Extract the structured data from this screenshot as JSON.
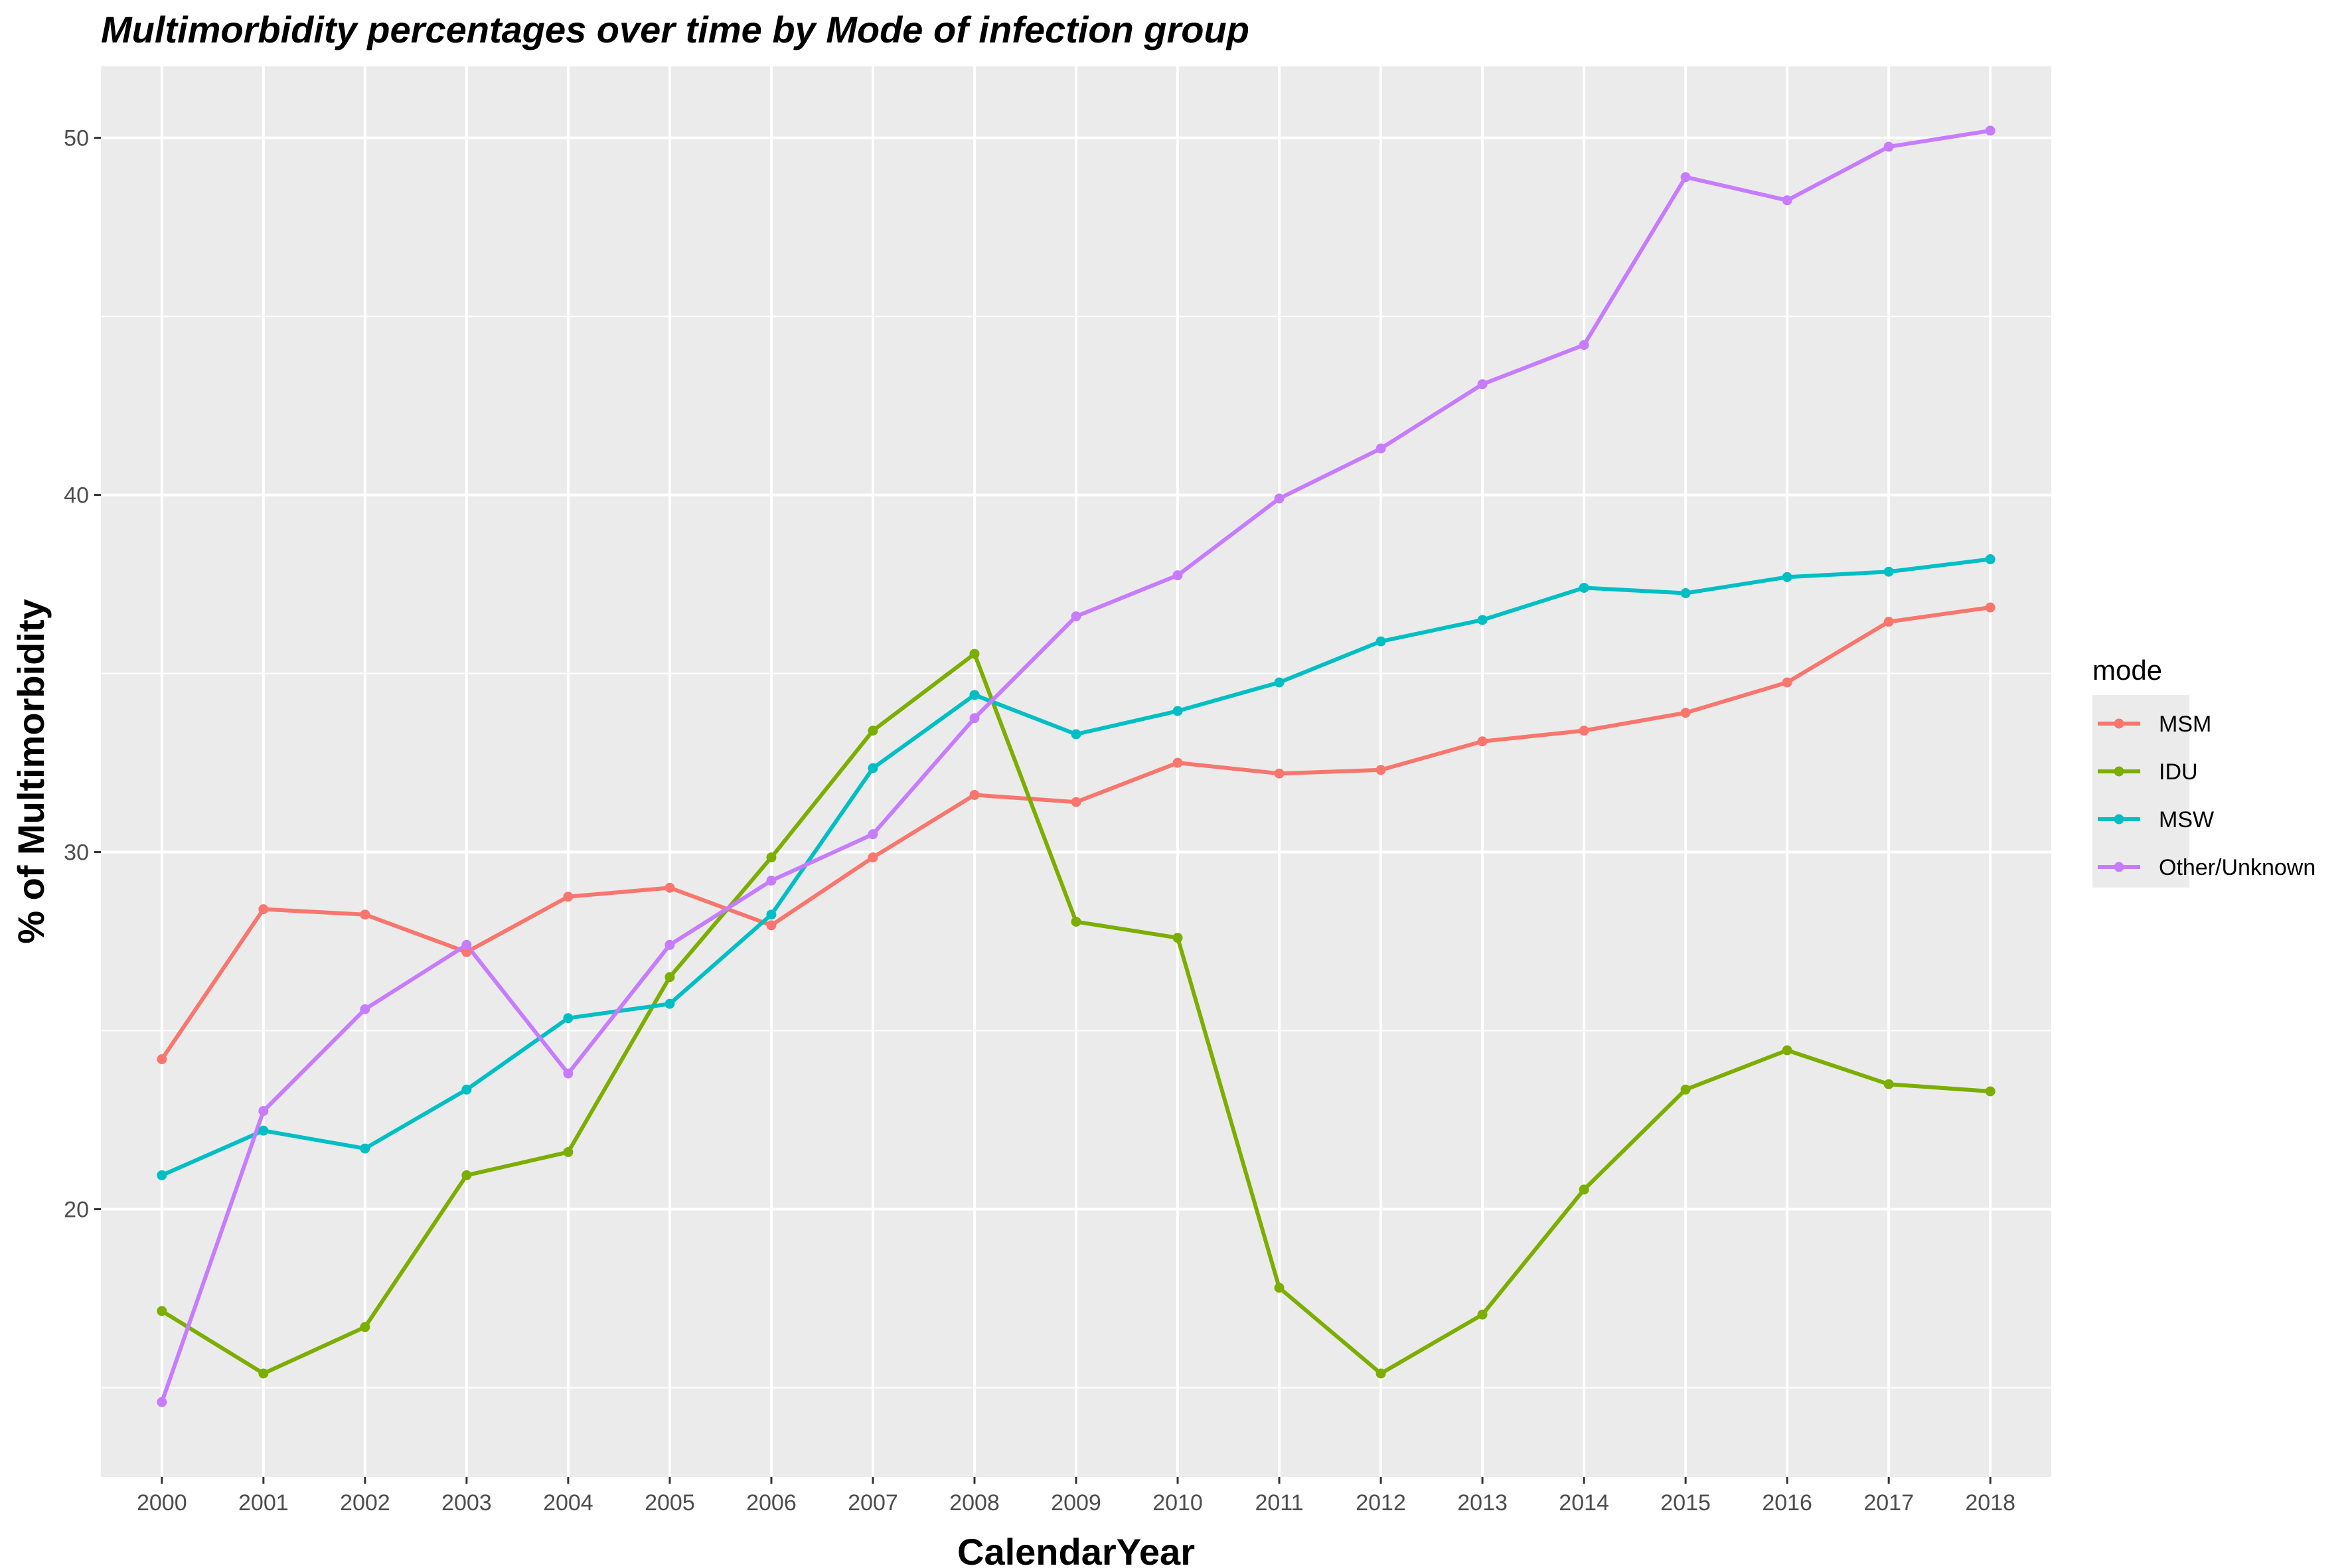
{
  "chart_data": {
    "type": "line",
    "title": "Multimorbidity percentages over time by Mode of infection group",
    "xlabel": "CalendarYear",
    "ylabel": "% of Multimorbidity",
    "x": [
      2000,
      2001,
      2002,
      2003,
      2004,
      2005,
      2006,
      2007,
      2008,
      2009,
      2010,
      2011,
      2012,
      2013,
      2014,
      2015,
      2016,
      2017,
      2018
    ],
    "xlim": [
      1999.4,
      2018.6
    ],
    "ylim": [
      12.5,
      52
    ],
    "y_ticks": [
      20,
      30,
      40,
      50
    ],
    "grid": true,
    "legend": {
      "title": "mode",
      "position": "right"
    },
    "series": [
      {
        "name": "MSM",
        "color": "#F8766D",
        "values": [
          24.2,
          28.4,
          28.25,
          27.2,
          28.75,
          29.0,
          27.95,
          29.85,
          31.6,
          31.4,
          32.5,
          32.2,
          32.3,
          33.1,
          33.4,
          33.9,
          34.75,
          36.45,
          36.85
        ]
      },
      {
        "name": "IDU",
        "color": "#7CAE00",
        "values": [
          17.15,
          15.4,
          16.7,
          20.95,
          21.6,
          26.5,
          29.85,
          33.4,
          35.55,
          28.05,
          27.6,
          17.8,
          15.4,
          17.05,
          20.55,
          23.35,
          24.45,
          23.5,
          23.3
        ]
      },
      {
        "name": "MSW",
        "color": "#00BFC4",
        "values": [
          20.95,
          22.2,
          21.7,
          23.35,
          25.35,
          25.75,
          28.25,
          32.35,
          34.4,
          33.3,
          33.95,
          34.75,
          35.9,
          36.5,
          37.4,
          37.25,
          37.7,
          37.85,
          38.2
        ]
      },
      {
        "name": "Other/Unknown",
        "color": "#C77CFF",
        "values": [
          14.6,
          22.75,
          25.6,
          27.4,
          23.8,
          27.4,
          29.2,
          30.5,
          33.75,
          36.6,
          37.75,
          39.9,
          41.3,
          43.1,
          44.2,
          48.9,
          48.25,
          49.75,
          50.2
        ]
      }
    ]
  }
}
